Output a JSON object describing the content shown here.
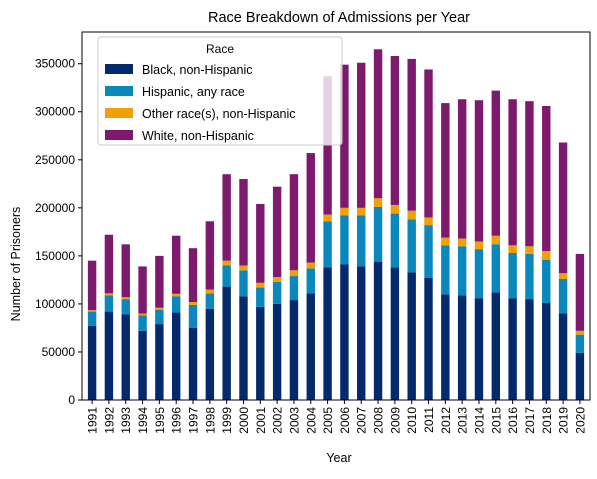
{
  "chart_data": {
    "type": "bar",
    "stacked": true,
    "title": "Race Breakdown of Admissions per Year",
    "xlabel": "Year",
    "ylabel": "Number of Prisoners",
    "ylim": [
      0,
      383000
    ],
    "yticks": [
      0,
      50000,
      100000,
      150000,
      200000,
      250000,
      300000,
      350000
    ],
    "ytick_labels": [
      "0",
      "50000",
      "100000",
      "150000",
      "200000",
      "250000",
      "300000",
      "350000"
    ],
    "grid": false,
    "categories": [
      "1991",
      "1992",
      "1993",
      "1994",
      "1995",
      "1996",
      "1997",
      "1998",
      "1999",
      "2000",
      "2001",
      "2002",
      "2003",
      "2004",
      "2005",
      "2006",
      "2007",
      "2008",
      "2009",
      "2010",
      "2011",
      "2012",
      "2013",
      "2014",
      "2015",
      "2016",
      "2017",
      "2018",
      "2019",
      "2020"
    ],
    "legend": {
      "title": "Race",
      "placement": "upper left"
    },
    "series": [
      {
        "name": "Black, non-Hispanic",
        "color": "#052a6b",
        "values": [
          77000,
          92000,
          89000,
          72000,
          79000,
          91000,
          75000,
          95000,
          118000,
          108000,
          97000,
          100000,
          104000,
          111000,
          138000,
          141000,
          139000,
          144000,
          138000,
          133000,
          127000,
          110000,
          109000,
          106000,
          112000,
          106000,
          105000,
          101000,
          90000,
          49000
        ]
      },
      {
        "name": "Hispanic, any race",
        "color": "#0a87bd",
        "values": [
          15000,
          17000,
          16000,
          16000,
          15000,
          17000,
          24000,
          16000,
          22000,
          27000,
          20000,
          23000,
          25000,
          26000,
          48000,
          51000,
          53000,
          57000,
          56000,
          55000,
          55000,
          51000,
          51000,
          51000,
          50000,
          47000,
          47000,
          45000,
          36000,
          19000
        ]
      },
      {
        "name": "Other race(s), non-Hispanic",
        "color": "#f0a000",
        "values": [
          1500,
          2000,
          2000,
          2000,
          2000,
          2500,
          3000,
          4000,
          5000,
          5000,
          5000,
          5000,
          6000,
          6000,
          7000,
          8000,
          8000,
          9000,
          9000,
          9000,
          8000,
          8000,
          8000,
          8000,
          9000,
          8000,
          8000,
          9000,
          6000,
          4000
        ]
      },
      {
        "name": "White, non-Hispanic",
        "color": "#7d1a6e",
        "values": [
          51500,
          61000,
          55000,
          49000,
          54000,
          60500,
          56000,
          71000,
          90000,
          90000,
          82000,
          94000,
          100000,
          114000,
          144000,
          149000,
          151000,
          155000,
          155000,
          158000,
          154000,
          140000,
          145000,
          147000,
          151000,
          152000,
          151000,
          151000,
          136000,
          80000
        ]
      }
    ]
  }
}
